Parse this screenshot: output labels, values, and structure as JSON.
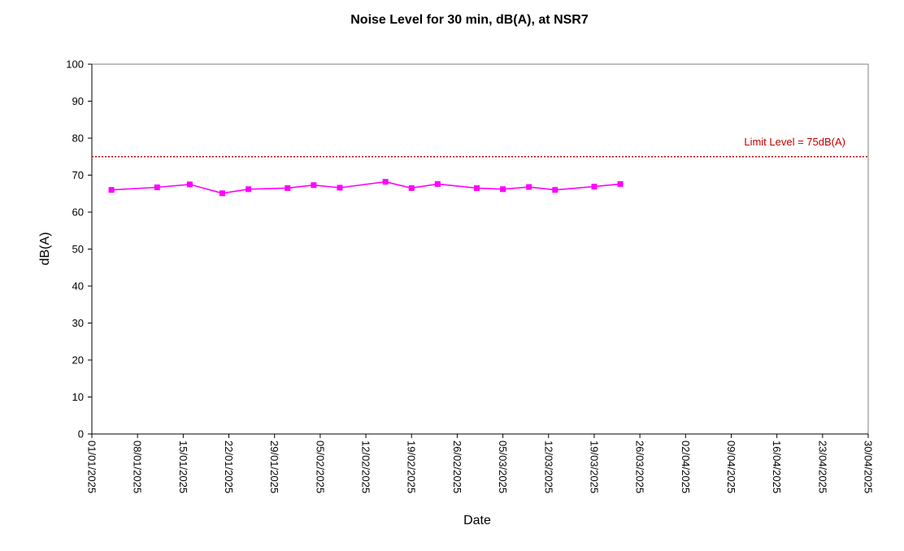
{
  "chart_data": {
    "type": "line",
    "title": "Noise Level for 30 min, dB(A), at NSR7",
    "xlabel": "Date",
    "ylabel": "dB(A)",
    "ylim": [
      0,
      100
    ],
    "yticks": [
      0,
      10,
      20,
      30,
      40,
      50,
      60,
      70,
      80,
      90,
      100
    ],
    "xlim": [
      "01/01/2025",
      "30/04/2025"
    ],
    "xticks": [
      "01/01/2025",
      "08/01/2025",
      "15/01/2025",
      "22/01/2025",
      "29/01/2025",
      "05/02/2025",
      "12/02/2025",
      "19/02/2025",
      "26/02/2025",
      "05/03/2025",
      "12/03/2025",
      "19/03/2025",
      "26/03/2025",
      "02/04/2025",
      "09/04/2025",
      "16/04/2025",
      "23/04/2025",
      "30/04/2025"
    ],
    "grid": false,
    "series": [
      {
        "color": "#ff00ff",
        "marker": "square",
        "points": [
          {
            "x": "04/01/2025",
            "y": 66.0
          },
          {
            "x": "11/01/2025",
            "y": 66.7
          },
          {
            "x": "16/01/2025",
            "y": 67.5
          },
          {
            "x": "21/01/2025",
            "y": 65.1
          },
          {
            "x": "25/01/2025",
            "y": 66.2
          },
          {
            "x": "31/01/2025",
            "y": 66.5
          },
          {
            "x": "04/02/2025",
            "y": 67.3
          },
          {
            "x": "08/02/2025",
            "y": 66.6
          },
          {
            "x": "15/02/2025",
            "y": 68.2
          },
          {
            "x": "19/02/2025",
            "y": 66.5
          },
          {
            "x": "23/02/2025",
            "y": 67.6
          },
          {
            "x": "01/03/2025",
            "y": 66.5
          },
          {
            "x": "05/03/2025",
            "y": 66.2
          },
          {
            "x": "09/03/2025",
            "y": 66.8
          },
          {
            "x": "13/03/2025",
            "y": 66.0
          },
          {
            "x": "19/03/2025",
            "y": 66.9
          },
          {
            "x": "23/03/2025",
            "y": 67.6
          }
        ]
      }
    ],
    "limit": {
      "value": 75,
      "label": "Limit Level  = 75dB(A)",
      "color": "#c00000",
      "style": "dotted"
    }
  }
}
